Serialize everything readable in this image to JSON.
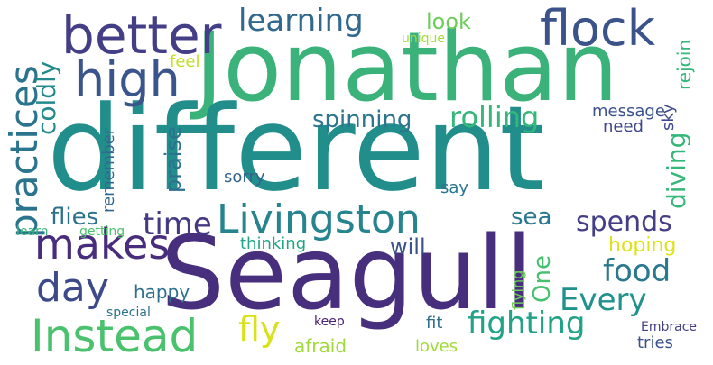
{
  "words": [
    {
      "text": "Jonathan",
      "color": "#3bb27a"
    },
    {
      "text": "different",
      "color": "#218e8c"
    },
    {
      "text": "Seagull",
      "color": "#472f7d"
    },
    {
      "text": "better",
      "color": "#433e85"
    },
    {
      "text": "flock",
      "color": "#3b528b"
    },
    {
      "text": "learning",
      "color": "#31688e"
    },
    {
      "text": "high",
      "color": "#3a548c"
    },
    {
      "text": "practices",
      "color": "#2b748e"
    },
    {
      "text": "coldly",
      "color": "#238a8d"
    },
    {
      "text": "look",
      "color": "#6ccd5a"
    },
    {
      "text": "unique",
      "color": "#a5db36"
    },
    {
      "text": "rejoin",
      "color": "#35b779"
    },
    {
      "text": "feel",
      "color": "#c5e021"
    },
    {
      "text": "spinning",
      "color": "#2b758e"
    },
    {
      "text": "rolling",
      "color": "#35b779"
    },
    {
      "text": "message",
      "color": "#3b528b"
    },
    {
      "text": "sky",
      "color": "#3e4989"
    },
    {
      "text": "need",
      "color": "#404688"
    },
    {
      "text": "diving",
      "color": "#35b779"
    },
    {
      "text": "praise",
      "color": "#2c728e"
    },
    {
      "text": "remember",
      "color": "#31688e"
    },
    {
      "text": "sorry",
      "color": "#33638d"
    },
    {
      "text": "say",
      "color": "#2a768e"
    },
    {
      "text": "Livingston",
      "color": "#25848e"
    },
    {
      "text": "time",
      "color": "#443a83"
    },
    {
      "text": "flies",
      "color": "#2c728e"
    },
    {
      "text": "makes",
      "color": "#472d7b"
    },
    {
      "text": "sea",
      "color": "#2a778e"
    },
    {
      "text": "spends",
      "color": "#433e85"
    },
    {
      "text": "learn",
      "color": "#35b779"
    },
    {
      "text": "getting",
      "color": "#4ac16d"
    },
    {
      "text": "thinking",
      "color": "#20a486"
    },
    {
      "text": "will",
      "color": "#3b528b"
    },
    {
      "text": "hoping",
      "color": "#dde318"
    },
    {
      "text": "day",
      "color": "#3e4989"
    },
    {
      "text": "food",
      "color": "#2a788e"
    },
    {
      "text": "One",
      "color": "#46c06f"
    },
    {
      "text": "flying",
      "color": "#6ece58"
    },
    {
      "text": "happy",
      "color": "#2d708e"
    },
    {
      "text": "Every",
      "color": "#21918c"
    },
    {
      "text": "special",
      "color": "#2c718e"
    },
    {
      "text": "Instead",
      "color": "#4ac16d"
    },
    {
      "text": "fly",
      "color": "#d8e219"
    },
    {
      "text": "fighting",
      "color": "#20a386"
    },
    {
      "text": "keep",
      "color": "#482173"
    },
    {
      "text": "fit",
      "color": "#2e6e8e"
    },
    {
      "text": "Embrace",
      "color": "#433e85"
    },
    {
      "text": "afraid",
      "color": "#9fda3a"
    },
    {
      "text": "loves",
      "color": "#a0da39"
    },
    {
      "text": "tries",
      "color": "#3b528b"
    }
  ]
}
